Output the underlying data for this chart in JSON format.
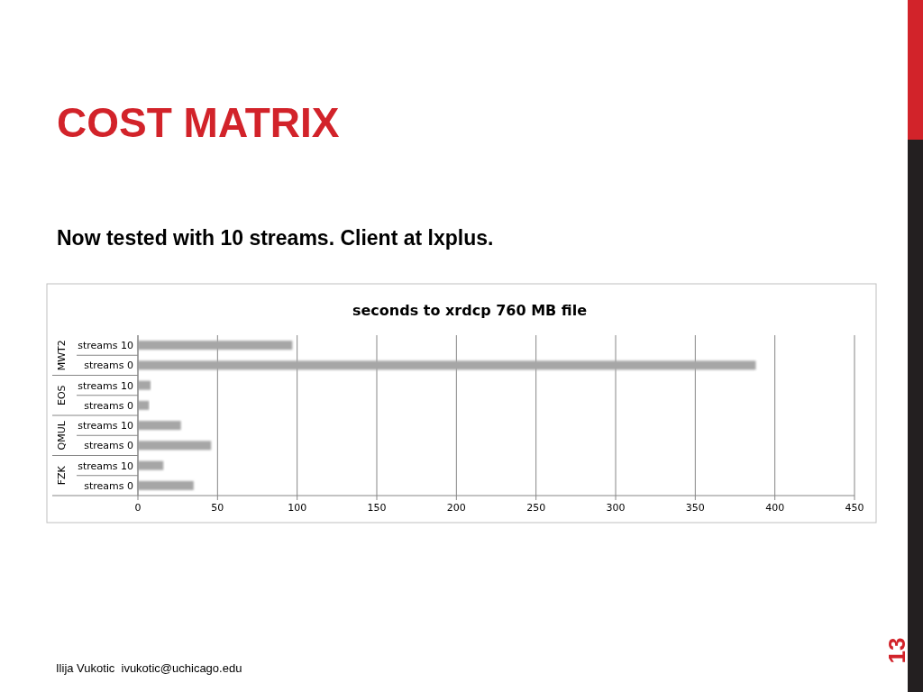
{
  "chart_data": {
    "type": "bar",
    "orientation": "horizontal",
    "title": "COST MATRIX",
    "subtitle": "Now tested with 10 streams. Client at lxplus.",
    "categories": [
      "streams 10",
      "streams 0",
      "streams 10",
      "streams 0",
      "streams 10",
      "streams 0",
      "streams 10",
      "streams 0"
    ],
    "values": [
      97,
      388,
      8,
      7,
      27,
      46,
      16,
      35
    ],
    "color": "#a6a6a6",
    "xlim": [
      0,
      450
    ],
    "xticks": [
      0,
      50,
      100,
      150,
      200,
      250,
      300,
      350,
      400,
      450
    ],
    "grid": "x",
    "annotations": [
      "seconds to xrdcp 760 MB file",
      "MWT2",
      "EOS",
      "QMUL",
      "FZK",
      "Ilija Vukotic  ivukotic@uchicago.edu",
      "13"
    ]
  }
}
